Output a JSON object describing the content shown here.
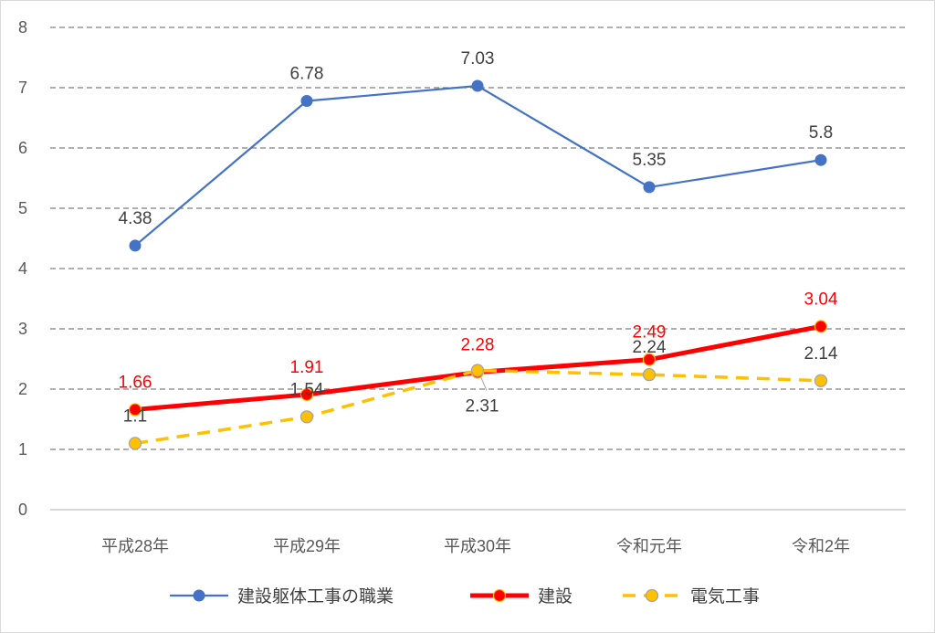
{
  "chart_data": {
    "type": "line",
    "categories": [
      "平成28年",
      "平成29年",
      "平成30年",
      "令和元年",
      "令和2年"
    ],
    "ylim": [
      0,
      8
    ],
    "yticks": [
      "0",
      "1",
      "2",
      "3",
      "4",
      "5",
      "6",
      "7",
      "8"
    ],
    "grid": "horizontal dashed",
    "legend_position": "bottom",
    "series": [
      {
        "name": "建設躯体工事の職業",
        "values": [
          4.38,
          6.78,
          7.03,
          5.35,
          5.8
        ],
        "labels": [
          "4.38",
          "6.78",
          "7.03",
          "5.35",
          "5.8"
        ],
        "color": "#4472C4",
        "style": "solid",
        "label_color": "#404040"
      },
      {
        "name": "建設",
        "values": [
          1.66,
          1.91,
          2.28,
          2.49,
          3.04
        ],
        "labels": [
          "1.66",
          "1.91",
          "2.28",
          "2.49",
          "3.04"
        ],
        "color": "#FF0000",
        "style": "solid-thick",
        "label_color": "#FF0000"
      },
      {
        "name": "電気工事",
        "values": [
          1.1,
          1.54,
          2.31,
          2.24,
          2.14
        ],
        "labels": [
          "1.1",
          "1.54",
          "2.31",
          "2.24",
          "2.14"
        ],
        "color": "#FFC000",
        "style": "dashed",
        "label_color": "#404040"
      }
    ]
  }
}
